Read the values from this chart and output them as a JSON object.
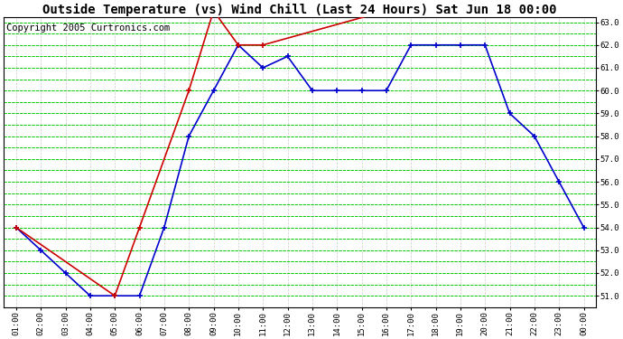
{
  "title": "Outside Temperature (vs) Wind Chill (Last 24 Hours) Sat Jun 18 00:00",
  "copyright": "Copyright 2005 Curtronics.com",
  "x_labels": [
    "01:00",
    "02:00",
    "03:00",
    "04:00",
    "05:00",
    "06:00",
    "07:00",
    "08:00",
    "09:00",
    "10:00",
    "11:00",
    "12:00",
    "13:00",
    "14:00",
    "15:00",
    "16:00",
    "17:00",
    "18:00",
    "19:00",
    "20:00",
    "21:00",
    "22:00",
    "23:00",
    "00:00"
  ],
  "outside_temp": [
    54.0,
    53.0,
    52.0,
    51.0,
    51.0,
    51.0,
    54.0,
    58.0,
    60.0,
    62.0,
    61.0,
    61.5,
    60.0,
    60.0,
    60.0,
    60.0,
    62.0,
    62.0,
    62.0,
    62.0,
    59.0,
    58.0,
    56.0,
    54.0
  ],
  "wind_chill_x": [
    0,
    4,
    5,
    7,
    8,
    9,
    10,
    15
  ],
  "wind_chill_y": [
    54.0,
    51.0,
    54.0,
    60.0,
    63.5,
    62.0,
    62.0,
    63.5
  ],
  "ylim_min": 51.0,
  "ylim_max": 63.0,
  "yticks": [
    51.0,
    52.0,
    53.0,
    54.0,
    55.0,
    56.0,
    57.0,
    58.0,
    59.0,
    60.0,
    61.0,
    62.0,
    63.0
  ],
  "outside_color": "#0000CC",
  "wind_chill_color": "#CC0000",
  "bg_color": "#FFFFFF",
  "grid_major_color": "#00CC00",
  "grid_minor_color": "#CCCCCC",
  "title_fontsize": 10,
  "copyright_fontsize": 7.5
}
